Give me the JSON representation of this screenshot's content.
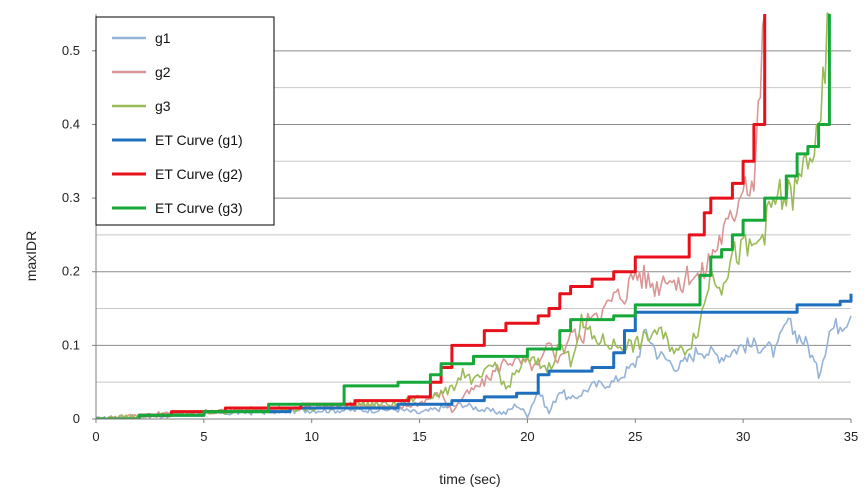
{
  "chart_data": {
    "type": "line",
    "xlabel": "time (sec)",
    "ylabel": "maxIDR",
    "xlim": [
      0,
      35
    ],
    "ylim": [
      0,
      0.55
    ],
    "x_ticks": [
      0,
      5,
      10,
      15,
      20,
      25,
      30,
      35
    ],
    "x_tick_labels": [
      "0",
      "5",
      "10",
      "15",
      "20",
      "25",
      "30",
      "35"
    ],
    "y_ticks": [
      0,
      0.1,
      0.2,
      0.3,
      0.4,
      0.5
    ],
    "y_tick_labels": [
      "0",
      "0.1",
      "0.2",
      "0.3",
      "0.4",
      "0.5"
    ],
    "grid": "horizontal",
    "legend_position": "top-left",
    "series": [
      {
        "name": "g1",
        "color": "#95b3d7",
        "style": "noisy",
        "x": [
          0,
          2,
          4,
          6,
          8,
          10,
          12,
          14,
          15,
          16,
          17,
          18,
          19,
          19.5,
          20,
          20.5,
          21,
          21.5,
          22,
          23,
          24,
          25,
          25.5,
          26,
          27,
          28,
          29,
          30,
          31,
          31.5,
          32,
          33,
          33.5,
          34,
          35
        ],
        "y": [
          0,
          0.003,
          0.006,
          0.008,
          0.01,
          0.012,
          0.012,
          0.013,
          0.008,
          0.015,
          0.02,
          0.012,
          0.008,
          0.02,
          0.005,
          0.04,
          0.008,
          0.04,
          0.025,
          0.045,
          0.05,
          0.075,
          0.12,
          0.09,
          0.07,
          0.095,
          0.085,
          0.1,
          0.1,
          0.09,
          0.13,
          0.1,
          0.06,
          0.12,
          0.14
        ]
      },
      {
        "name": "g2",
        "color": "#d99694",
        "style": "noisy",
        "x": [
          0,
          2,
          4,
          6,
          8,
          10,
          12,
          14,
          15,
          16,
          16.5,
          17,
          18,
          18.5,
          19,
          20,
          20.5,
          21,
          21.5,
          22,
          22.5,
          23,
          23.5,
          24,
          24.5,
          25,
          25.5,
          26,
          26.5,
          27,
          27.5,
          28,
          28.5,
          29,
          29.5,
          30,
          30.5,
          31
        ],
        "y": [
          0,
          0.005,
          0.008,
          0.012,
          0.014,
          0.016,
          0.02,
          0.015,
          0.022,
          0.035,
          0.01,
          0.03,
          0.05,
          0.065,
          0.08,
          0.075,
          0.07,
          0.1,
          0.08,
          0.12,
          0.105,
          0.15,
          0.145,
          0.165,
          0.17,
          0.2,
          0.19,
          0.18,
          0.2,
          0.175,
          0.2,
          0.19,
          0.22,
          0.25,
          0.27,
          0.33,
          0.32,
          0.55
        ]
      },
      {
        "name": "g3",
        "color": "#9bbb59",
        "style": "noisy",
        "x": [
          0,
          2,
          4,
          6,
          8,
          10,
          12,
          14,
          15,
          16,
          16.5,
          17,
          17.5,
          18,
          18.5,
          19,
          19.5,
          20,
          21,
          21.5,
          22,
          22.5,
          23,
          24,
          25,
          26,
          27,
          27.5,
          28,
          28.5,
          29,
          29.5,
          30,
          30.5,
          31,
          31.5,
          32,
          32.5,
          33,
          33.5,
          34
        ],
        "y": [
          0,
          0.004,
          0.007,
          0.01,
          0.012,
          0.013,
          0.02,
          0.02,
          0.03,
          0.035,
          0.04,
          0.065,
          0.05,
          0.06,
          0.075,
          0.04,
          0.065,
          0.08,
          0.07,
          0.1,
          0.08,
          0.13,
          0.11,
          0.1,
          0.1,
          0.12,
          0.09,
          0.1,
          0.13,
          0.2,
          0.185,
          0.22,
          0.23,
          0.23,
          0.26,
          0.3,
          0.3,
          0.31,
          0.36,
          0.37,
          0.55
        ]
      },
      {
        "name": "ET Curve (g1)",
        "color": "#1f6fbf",
        "style": "step",
        "x": [
          0,
          2,
          5,
          9,
          14,
          16.5,
          18,
          19.5,
          20.5,
          21,
          23,
          24,
          24.5,
          25,
          28,
          32.5,
          34.5,
          35
        ],
        "y": [
          0,
          0.005,
          0.01,
          0.015,
          0.02,
          0.025,
          0.03,
          0.035,
          0.06,
          0.065,
          0.07,
          0.09,
          0.12,
          0.145,
          0.145,
          0.155,
          0.16,
          0.17
        ]
      },
      {
        "name": "ET Curve (g2)",
        "color": "#e8101a",
        "style": "step",
        "x": [
          0,
          2,
          3.5,
          6,
          9.5,
          12,
          14.5,
          15.5,
          16,
          16.5,
          18,
          19,
          20.5,
          21,
          21.5,
          22,
          23,
          24,
          25,
          27.5,
          28.2,
          28.5,
          29.5,
          30,
          30.5,
          31
        ],
        "y": [
          0,
          0.005,
          0.01,
          0.015,
          0.02,
          0.025,
          0.03,
          0.05,
          0.07,
          0.1,
          0.12,
          0.13,
          0.14,
          0.15,
          0.17,
          0.18,
          0.19,
          0.2,
          0.22,
          0.25,
          0.28,
          0.3,
          0.32,
          0.35,
          0.4,
          0.55
        ]
      },
      {
        "name": "ET Curve (g3)",
        "color": "#17a83a",
        "style": "step",
        "x": [
          0,
          2,
          5,
          8,
          11.5,
          14,
          15.5,
          16,
          17.5,
          18,
          19.5,
          20,
          21.5,
          22,
          24,
          25,
          26,
          27,
          28,
          28.5,
          29,
          29.5,
          30,
          31,
          32,
          32.5,
          33,
          33.5,
          34
        ],
        "y": [
          0,
          0.005,
          0.01,
          0.02,
          0.045,
          0.05,
          0.06,
          0.075,
          0.085,
          0.085,
          0.085,
          0.095,
          0.12,
          0.135,
          0.14,
          0.155,
          0.155,
          0.155,
          0.195,
          0.22,
          0.23,
          0.25,
          0.27,
          0.3,
          0.33,
          0.36,
          0.37,
          0.4,
          0.55
        ]
      }
    ]
  }
}
